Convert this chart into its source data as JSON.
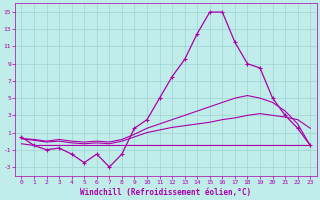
{
  "xlabel": "Windchill (Refroidissement éolien,°C)",
  "xlim": [
    -0.5,
    23.5
  ],
  "ylim": [
    -4,
    16
  ],
  "yticks": [
    -3,
    -1,
    1,
    3,
    5,
    7,
    9,
    11,
    13,
    15
  ],
  "xticks": [
    0,
    1,
    2,
    3,
    4,
    5,
    6,
    7,
    8,
    9,
    10,
    11,
    12,
    13,
    14,
    15,
    16,
    17,
    18,
    19,
    20,
    21,
    22,
    23
  ],
  "bg_color": "#c0ecea",
  "grid_color": "#9dd4d2",
  "line_color": "#aa00aa",
  "line_main_y": [
    0.5,
    -0.5,
    -1.0,
    -0.8,
    -1.5,
    -2.5,
    -1.5,
    -3.0,
    -1.5,
    1.5,
    2.5,
    5.0,
    7.5,
    9.5,
    12.5,
    15.0,
    15.0,
    11.5,
    9.0,
    8.5,
    5.0,
    3.0,
    1.5,
    -0.5
  ],
  "line_flat_y": [
    -0.3,
    -0.5,
    -0.5,
    -0.5,
    -0.5,
    -0.5,
    -0.5,
    -0.5,
    -0.5,
    -0.5,
    -0.5,
    -0.5,
    -0.5,
    -0.5,
    -0.5,
    -0.5,
    -0.5,
    -0.5,
    -0.5,
    -0.5,
    -0.5,
    -0.5,
    -0.5,
    -0.5
  ],
  "line_diag1_y": [
    0.3,
    0.1,
    -0.1,
    0.0,
    -0.2,
    -0.3,
    -0.2,
    -0.3,
    0.0,
    0.5,
    1.0,
    1.3,
    1.6,
    1.8,
    2.0,
    2.2,
    2.5,
    2.7,
    3.0,
    3.2,
    3.0,
    2.8,
    2.5,
    1.5
  ],
  "line_diag2_y": [
    0.3,
    0.2,
    0.0,
    0.2,
    0.0,
    -0.1,
    0.0,
    -0.1,
    0.2,
    0.8,
    1.5,
    2.0,
    2.5,
    3.0,
    3.5,
    4.0,
    4.5,
    5.0,
    5.3,
    5.0,
    4.5,
    3.5,
    2.0,
    -0.5
  ]
}
